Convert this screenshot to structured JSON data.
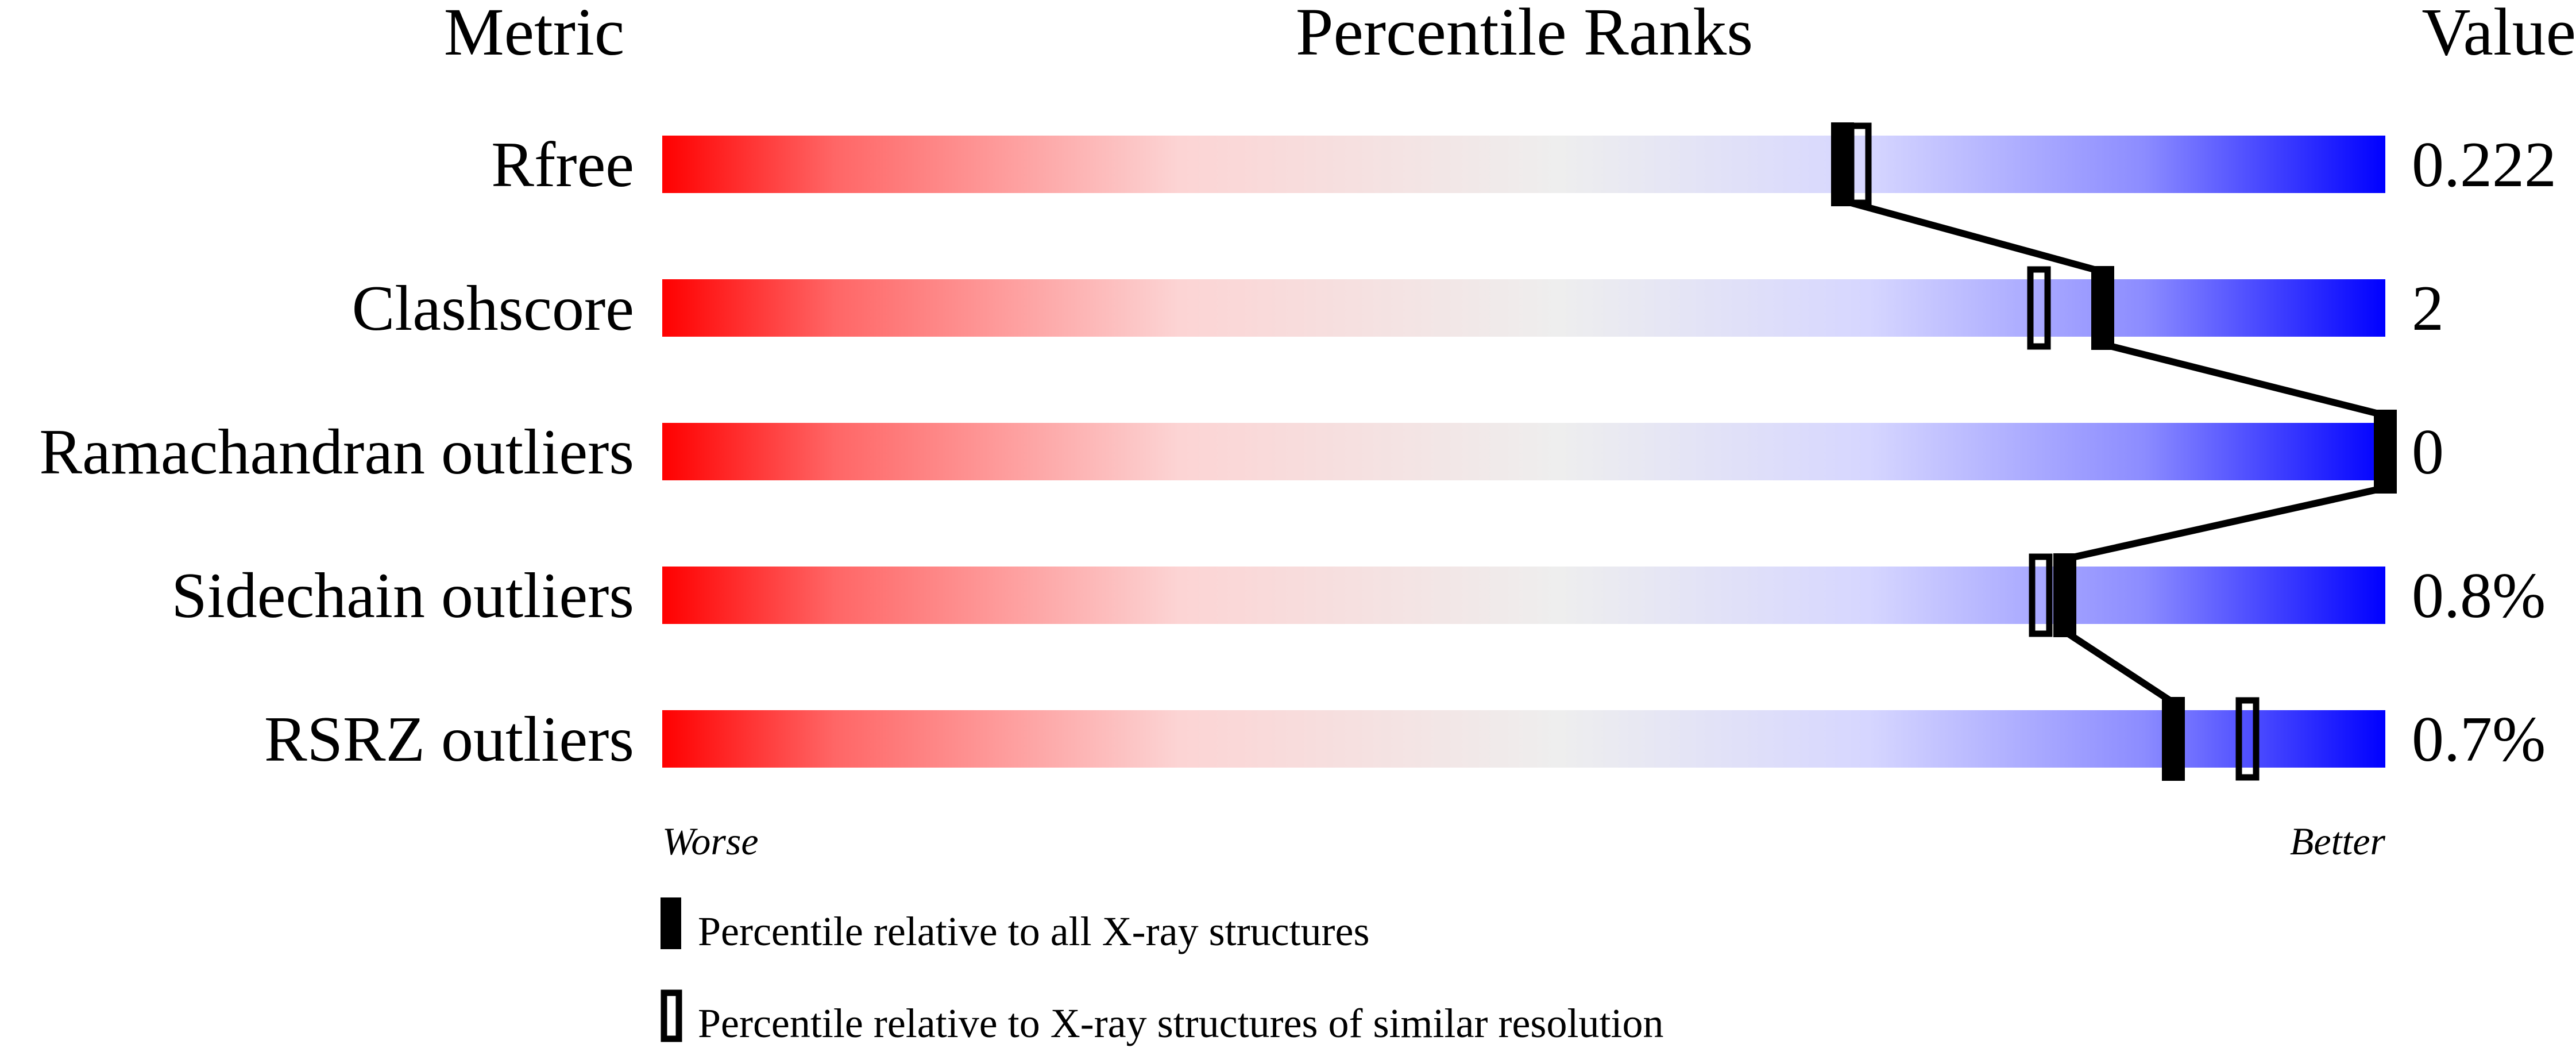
{
  "chart_data": {
    "type": "bar",
    "headers": {
      "metric": "Metric",
      "ranks": "Percentile Ranks",
      "value": "Value"
    },
    "xlim": [
      0,
      100
    ],
    "rows": [
      {
        "metric": "Rfree",
        "value": "0.222",
        "percentile_all": 68.5,
        "percentile_similar": 69.5
      },
      {
        "metric": "Clashscore",
        "value": "2",
        "percentile_all": 83.6,
        "percentile_similar": 79.9
      },
      {
        "metric": "Ramachandran outliers",
        "value": "0",
        "percentile_all": 100,
        "percentile_similar": null
      },
      {
        "metric": "Sidechain outliers",
        "value": "0.8%",
        "percentile_all": 81.4,
        "percentile_similar": 80.0
      },
      {
        "metric": "RSRZ outliers",
        "value": "0.7%",
        "percentile_all": 87.7,
        "percentile_similar": 92.0
      }
    ],
    "axis_labels": {
      "left": "Worse",
      "right": "Better"
    },
    "legend": [
      {
        "marker": "filled",
        "label": "Percentile relative to all X-ray structures"
      },
      {
        "marker": "open",
        "label": "Percentile relative to X-ray structures of similar resolution"
      }
    ],
    "colors": {
      "worse": "#ff0000",
      "middle": "#eeeeee",
      "better": "#0000ff",
      "marker": "#000000"
    }
  }
}
